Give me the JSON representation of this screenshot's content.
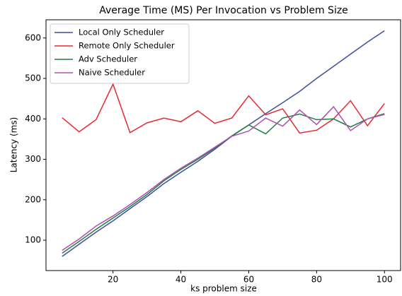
{
  "chart_data": {
    "type": "line",
    "title": "Average Time (MS) Per Invocation vs Problem Size",
    "x_label": "ks problem size",
    "y_label": "Latency (ms)",
    "x": [
      5,
      10,
      15,
      20,
      25,
      30,
      35,
      40,
      45,
      50,
      55,
      60,
      65,
      70,
      75,
      80,
      85,
      90,
      95,
      100
    ],
    "series": [
      {
        "name": "Local Only Scheduler",
        "color": "#3f4fa0",
        "values": [
          60,
          90,
          120,
          148,
          178,
          208,
          240,
          268,
          295,
          325,
          357,
          385,
          413,
          440,
          468,
          500,
          530,
          560,
          590,
          618
        ]
      },
      {
        "name": "Remote Only Scheduler",
        "color": "#e8282f",
        "values": [
          403,
          368,
          398,
          486,
          366,
          390,
          402,
          393,
          420,
          389,
          402,
          457,
          410,
          425,
          365,
          372,
          400,
          445,
          383,
          438
        ]
      },
      {
        "name": "Adv Scheduler",
        "color": "#1f7f3f",
        "values": [
          68,
          97,
          127,
          155,
          183,
          213,
          247,
          275,
          300,
          328,
          358,
          385,
          363,
          402,
          412,
          398,
          400,
          380,
          400,
          413
        ]
      },
      {
        "name": "Naive Scheduler",
        "color": "#b04eb0",
        "values": [
          75,
          103,
          135,
          160,
          188,
          218,
          250,
          278,
          303,
          330,
          357,
          370,
          402,
          382,
          422,
          386,
          430,
          371,
          400,
          411
        ]
      }
    ],
    "xlim": [
      0.25,
      104.75
    ],
    "ylim": [
      25,
      645
    ],
    "xticks": [
      20,
      40,
      60,
      80,
      100
    ],
    "yticks": [
      100,
      200,
      300,
      400,
      500,
      600
    ],
    "legend": "upper-left"
  }
}
